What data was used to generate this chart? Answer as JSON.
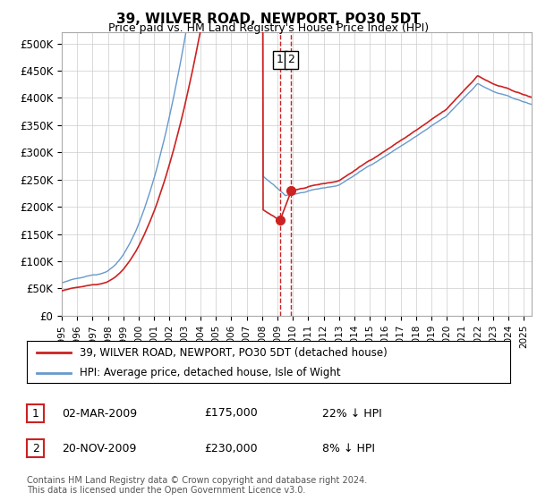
{
  "title": "39, WILVER ROAD, NEWPORT, PO30 5DT",
  "subtitle": "Price paid vs. HM Land Registry's House Price Index (HPI)",
  "ylim": [
    0,
    520000
  ],
  "xlim_start": 1995.0,
  "xlim_end": 2025.5,
  "legend_line1": "39, WILVER ROAD, NEWPORT, PO30 5DT (detached house)",
  "legend_line2": "HPI: Average price, detached house, Isle of Wight",
  "sale1_date": "02-MAR-2009",
  "sale1_price": "£175,000",
  "sale1_hpi": "22% ↓ HPI",
  "sale2_date": "20-NOV-2009",
  "sale2_price": "£230,000",
  "sale2_hpi": "8% ↓ HPI",
  "footer": "Contains HM Land Registry data © Crown copyright and database right 2024.\nThis data is licensed under the Open Government Licence v3.0.",
  "sale1_x": 2009.17,
  "sale1_y": 175000,
  "sale2_x": 2009.9,
  "sale2_y": 230000,
  "vline_x1": 2009.17,
  "vline_x2": 2009.9,
  "hpi_color": "#6699cc",
  "price_color": "#cc2222",
  "background_color": "#ffffff",
  "grid_color": "#cccccc"
}
